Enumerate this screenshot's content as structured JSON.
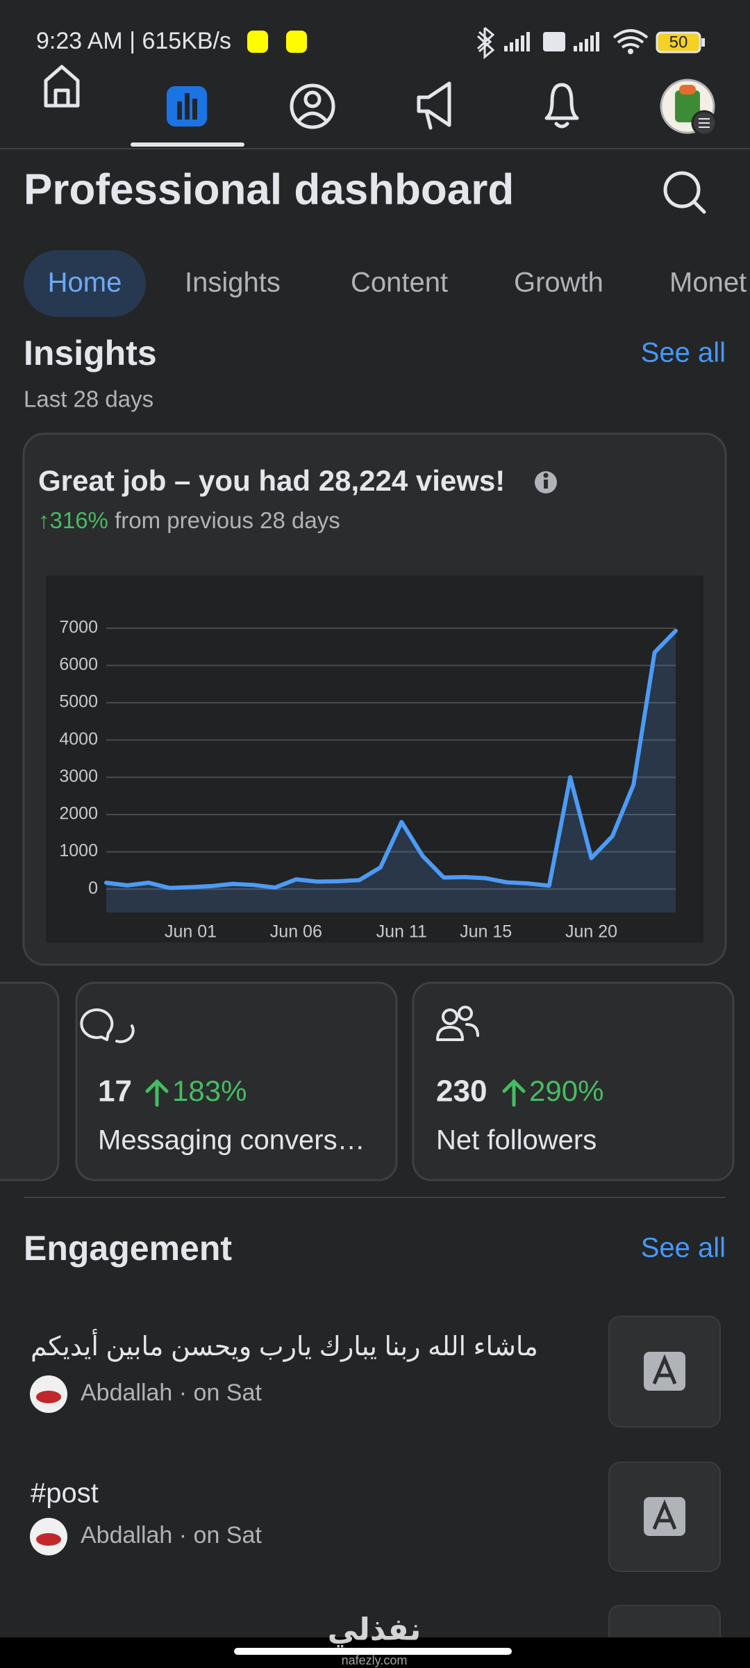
{
  "status_bar": {
    "time": "9:23 AM | 615KB/s",
    "battery": "50"
  },
  "header": {
    "title": "Professional dashboard"
  },
  "tabs": [
    "Home",
    "Insights",
    "Content",
    "Growth",
    "Monet"
  ],
  "insights": {
    "title": "Insights",
    "see_all": "See all",
    "period": "Last 28 days",
    "card": {
      "headline": "Great job – you had 28,224 views!",
      "change": "↑316%",
      "comparison": "from previous 28 days"
    }
  },
  "chart_data": {
    "type": "line",
    "categories": [
      null,
      null,
      null,
      null,
      "Jun 01",
      null,
      null,
      null,
      null,
      "Jun 06",
      null,
      null,
      null,
      null,
      "Jun 11",
      null,
      null,
      null,
      "Jun 15",
      null,
      null,
      null,
      null,
      "Jun 20",
      null,
      null,
      null,
      null
    ],
    "series": [
      {
        "color": "#4c9bf5",
        "values": [
          170,
          100,
          170,
          30,
          50,
          80,
          140,
          110,
          40,
          260,
          200,
          210,
          240,
          580,
          1800,
          890,
          310,
          320,
          290,
          180,
          150,
          90,
          3000,
          830,
          1420,
          2800,
          6350,
          6930
        ]
      }
    ],
    "ylim": [
      -630,
      7500
    ],
    "yticks": [
      0,
      1000,
      2000,
      3000,
      4000,
      5000,
      6000,
      7000
    ],
    "grid": true,
    "area": true
  },
  "stats": [
    {
      "value": "17",
      "change": "183%",
      "label": "Messaging convers…"
    },
    {
      "value": "230",
      "change": "290%",
      "label": "Net followers"
    }
  ],
  "engagement": {
    "title": "Engagement",
    "see_all": "See all",
    "items": [
      {
        "text": "ماشاء الله ربنا يبارك يارب ويحسن مابين أيديكم",
        "meta": "Abdallah · on Sat"
      },
      {
        "text": "#post",
        "meta": "Abdallah · on Sat"
      }
    ]
  },
  "watermark": {
    "logo": "نفذلي",
    "site": "nafezly.com"
  }
}
